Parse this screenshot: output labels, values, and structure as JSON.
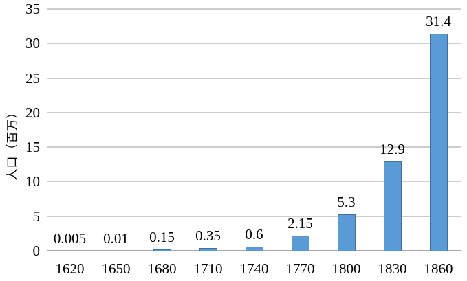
{
  "chart": {
    "bar_color": "#5b9bd5",
    "bar_border_color": "#41719c",
    "gridline_color": "#cdcdcd",
    "axis_color": "#a6a6a6",
    "text_color": "#000000",
    "background": "#ffffff"
  },
  "chart_data": {
    "type": "bar",
    "title": "",
    "xlabel": "",
    "ylabel": "人口（百万）",
    "categories": [
      "1620",
      "1650",
      "1680",
      "1710",
      "1740",
      "1770",
      "1800",
      "1830",
      "1860"
    ],
    "values": [
      0.005,
      0.01,
      0.15,
      0.35,
      0.6,
      2.15,
      5.3,
      12.9,
      31.4
    ],
    "value_labels": [
      "0.005",
      "0.01",
      "0.15",
      "0.35",
      "0.6",
      "2.15",
      "5.3",
      "12.9",
      "31.4"
    ],
    "yticks": [
      0,
      5,
      10,
      15,
      20,
      25,
      30,
      35
    ],
    "ylim": [
      0,
      35
    ],
    "grid": true,
    "legend": "none"
  }
}
